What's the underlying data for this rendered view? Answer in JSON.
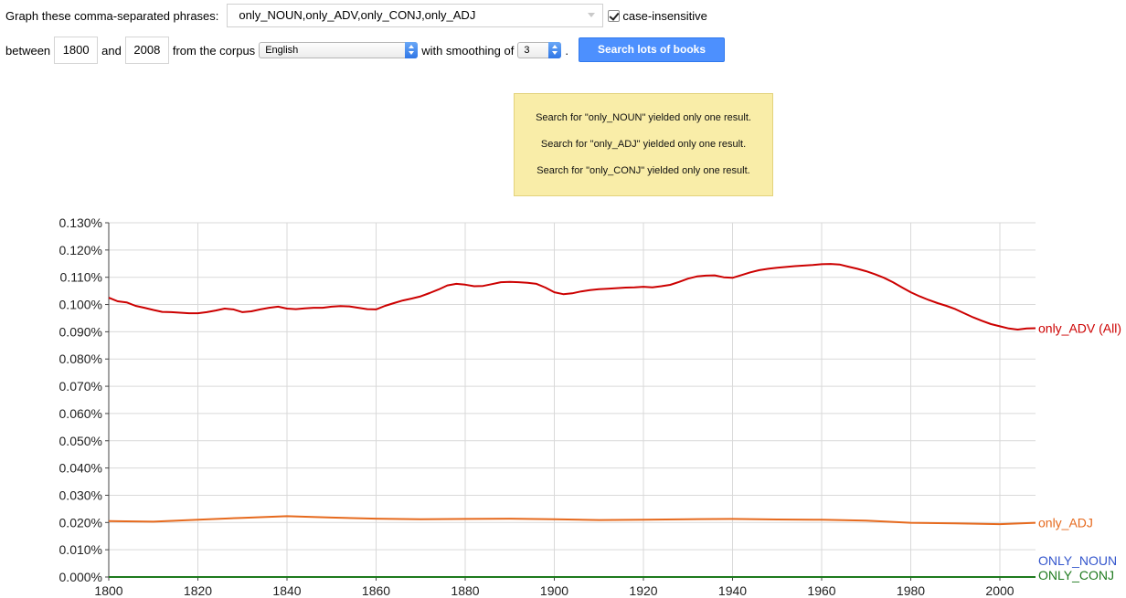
{
  "controls": {
    "phrases_label": "Graph these comma-separated phrases:",
    "phrases_value": "only_NOUN,only_ADV,only_CONJ,only_ADJ",
    "case_label": "case-insensitive",
    "between_label": "between",
    "start_year": "1800",
    "and_label": "and",
    "end_year": "2008",
    "corpus_label": "from the corpus",
    "corpus_value": "English",
    "smoothing_label": "with smoothing of",
    "smoothing_value": "3",
    "period": ".",
    "search_button": "Search lots of books"
  },
  "notice": {
    "lines": [
      "Search for \"only_NOUN\" yielded only one result.",
      "Search for \"only_ADJ\" yielded only one result.",
      "Search for \"only_CONJ\" yielded only one result."
    ]
  },
  "chart_data": {
    "type": "line",
    "title": "",
    "xlabel": "",
    "ylabel": "",
    "xlim": [
      1800,
      2008
    ],
    "ylim": [
      0,
      0.13
    ],
    "x_ticks": [
      1800,
      1820,
      1840,
      1860,
      1880,
      1900,
      1920,
      1940,
      1960,
      1980,
      2000
    ],
    "x_tick_labels": [
      "1800",
      "1820",
      "1840",
      "1860",
      "1880",
      "1900",
      "1920",
      "1940",
      "1960",
      "1980",
      "2000"
    ],
    "y_ticks": [
      0,
      0.01,
      0.02,
      0.03,
      0.04,
      0.05,
      0.06,
      0.07,
      0.08,
      0.09,
      0.1,
      0.11,
      0.12,
      0.13
    ],
    "y_tick_labels": [
      "0.000%",
      "0.010%",
      "0.020%",
      "0.030%",
      "0.040%",
      "0.050%",
      "0.060%",
      "0.070%",
      "0.080%",
      "0.090%",
      "0.100%",
      "0.110%",
      "0.120%",
      "0.130%"
    ],
    "grid": true,
    "legend": "line-end labels",
    "series": [
      {
        "name": "only_ADV (All)",
        "color": "#cc0000",
        "x": [
          1800,
          1802,
          1804,
          1806,
          1808,
          1810,
          1812,
          1814,
          1816,
          1818,
          1820,
          1822,
          1824,
          1826,
          1828,
          1830,
          1832,
          1834,
          1836,
          1838,
          1840,
          1842,
          1844,
          1846,
          1848,
          1850,
          1852,
          1854,
          1856,
          1858,
          1860,
          1862,
          1864,
          1866,
          1868,
          1870,
          1872,
          1874,
          1876,
          1878,
          1880,
          1882,
          1884,
          1886,
          1888,
          1890,
          1892,
          1894,
          1896,
          1898,
          1900,
          1902,
          1904,
          1906,
          1908,
          1910,
          1912,
          1914,
          1916,
          1918,
          1920,
          1922,
          1924,
          1926,
          1928,
          1930,
          1932,
          1934,
          1936,
          1938,
          1940,
          1942,
          1944,
          1946,
          1948,
          1950,
          1952,
          1954,
          1956,
          1958,
          1960,
          1962,
          1964,
          1966,
          1968,
          1970,
          1972,
          1974,
          1976,
          1978,
          1980,
          1982,
          1984,
          1986,
          1988,
          1990,
          1992,
          1994,
          1996,
          1998,
          2000,
          2002,
          2004,
          2006,
          2008
        ],
        "values": [
          0.1025,
          0.1012,
          0.1008,
          0.0995,
          0.0988,
          0.098,
          0.0973,
          0.0972,
          0.097,
          0.0968,
          0.0968,
          0.0972,
          0.0978,
          0.0985,
          0.0982,
          0.0972,
          0.0975,
          0.0982,
          0.0988,
          0.0992,
          0.0985,
          0.0983,
          0.0986,
          0.0988,
          0.0988,
          0.0992,
          0.0994,
          0.0993,
          0.0988,
          0.0983,
          0.0982,
          0.0995,
          0.1005,
          0.1015,
          0.1022,
          0.103,
          0.1042,
          0.1055,
          0.107,
          0.1076,
          0.1073,
          0.1067,
          0.1068,
          0.1075,
          0.1082,
          0.1083,
          0.1082,
          0.108,
          0.1076,
          0.1062,
          0.1045,
          0.1038,
          0.1041,
          0.1048,
          0.1053,
          0.1056,
          0.1058,
          0.106,
          0.1062,
          0.1063,
          0.1065,
          0.1063,
          0.1067,
          0.1072,
          0.1083,
          0.1095,
          0.1103,
          0.1106,
          0.1107,
          0.11,
          0.1098,
          0.1108,
          0.1118,
          0.1126,
          0.1131,
          0.1135,
          0.1138,
          0.1141,
          0.1143,
          0.1145,
          0.1148,
          0.1149,
          0.1147,
          0.1139,
          0.1131,
          0.1122,
          0.1111,
          0.1098,
          0.1082,
          0.1063,
          0.1045,
          0.103,
          0.1017,
          0.1005,
          0.0995,
          0.0983,
          0.0968,
          0.0953,
          0.094,
          0.0928,
          0.092,
          0.0912,
          0.0908,
          0.0912,
          0.0913
        ]
      },
      {
        "name": "only_ADJ",
        "color": "#e66a1e",
        "x": [
          1800,
          1810,
          1820,
          1830,
          1840,
          1850,
          1860,
          1870,
          1880,
          1890,
          1900,
          1910,
          1920,
          1930,
          1940,
          1950,
          1960,
          1970,
          1980,
          1990,
          2000,
          2008
        ],
        "values": [
          0.0205,
          0.0203,
          0.021,
          0.0217,
          0.0223,
          0.0218,
          0.0214,
          0.0212,
          0.0213,
          0.0214,
          0.0212,
          0.0209,
          0.021,
          0.0212,
          0.0213,
          0.0211,
          0.021,
          0.0207,
          0.0199,
          0.0197,
          0.0194,
          0.0199
        ]
      },
      {
        "name": "ONLY_NOUN",
        "color": "#3355cc",
        "x": [
          1800,
          2008
        ],
        "values": [
          0.0,
          0.0
        ]
      },
      {
        "name": "ONLY_CONJ",
        "color": "#1e7a1e",
        "x": [
          1800,
          2008
        ],
        "values": [
          0.0,
          0.0
        ]
      }
    ]
  }
}
